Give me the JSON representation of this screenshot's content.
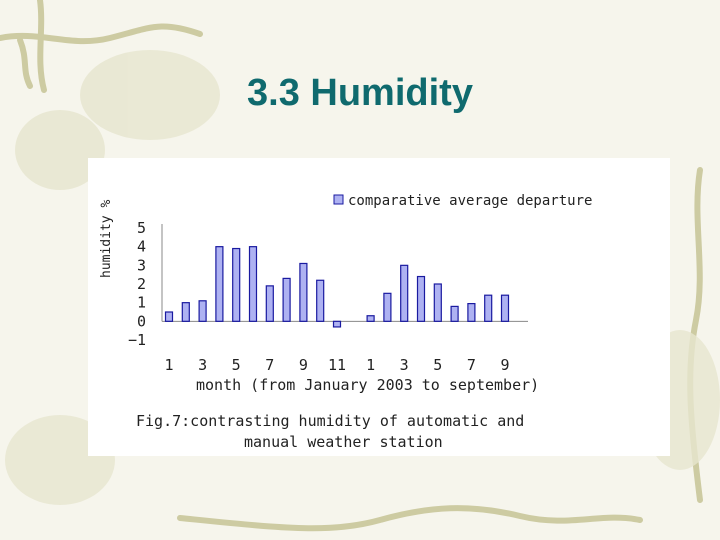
{
  "slide": {
    "title": "3.3 Humidity"
  },
  "chart_data": {
    "type": "bar",
    "title": "",
    "ylabel": "humidity %",
    "xlabel": "month (from January 2003 to september)",
    "caption_line1": "Fig.7:contrasting humidity of automatic and",
    "caption_line2": "manual weather station",
    "legend": "comparative average departure",
    "legend_position": "top-right",
    "ylim": [
      -1,
      5
    ],
    "yticks": [
      "5",
      "4",
      "3",
      "2",
      "1",
      "0",
      "−1"
    ],
    "xtick_labels": [
      "1",
      "3",
      "5",
      "7",
      "9",
      "11",
      "1",
      "3",
      "5",
      "7",
      "9"
    ],
    "categories": [
      "1",
      "2",
      "3",
      "4",
      "5",
      "6",
      "7",
      "8",
      "9",
      "10",
      "11",
      "12",
      "1",
      "2",
      "3",
      "4",
      "5",
      "6",
      "7",
      "8",
      "9"
    ],
    "series": [
      {
        "values": [
          0.5,
          1.0,
          1.1,
          4.0,
          3.9,
          4.0,
          1.9,
          2.3,
          3.1,
          2.2,
          -0.3,
          0,
          0.3,
          1.5,
          3.0,
          2.4,
          2.0,
          0.8,
          0.95,
          1.4,
          1.4
        ]
      }
    ],
    "bar_color": "#aeb2f2",
    "bar_edge_color": "#1a1aa0"
  }
}
